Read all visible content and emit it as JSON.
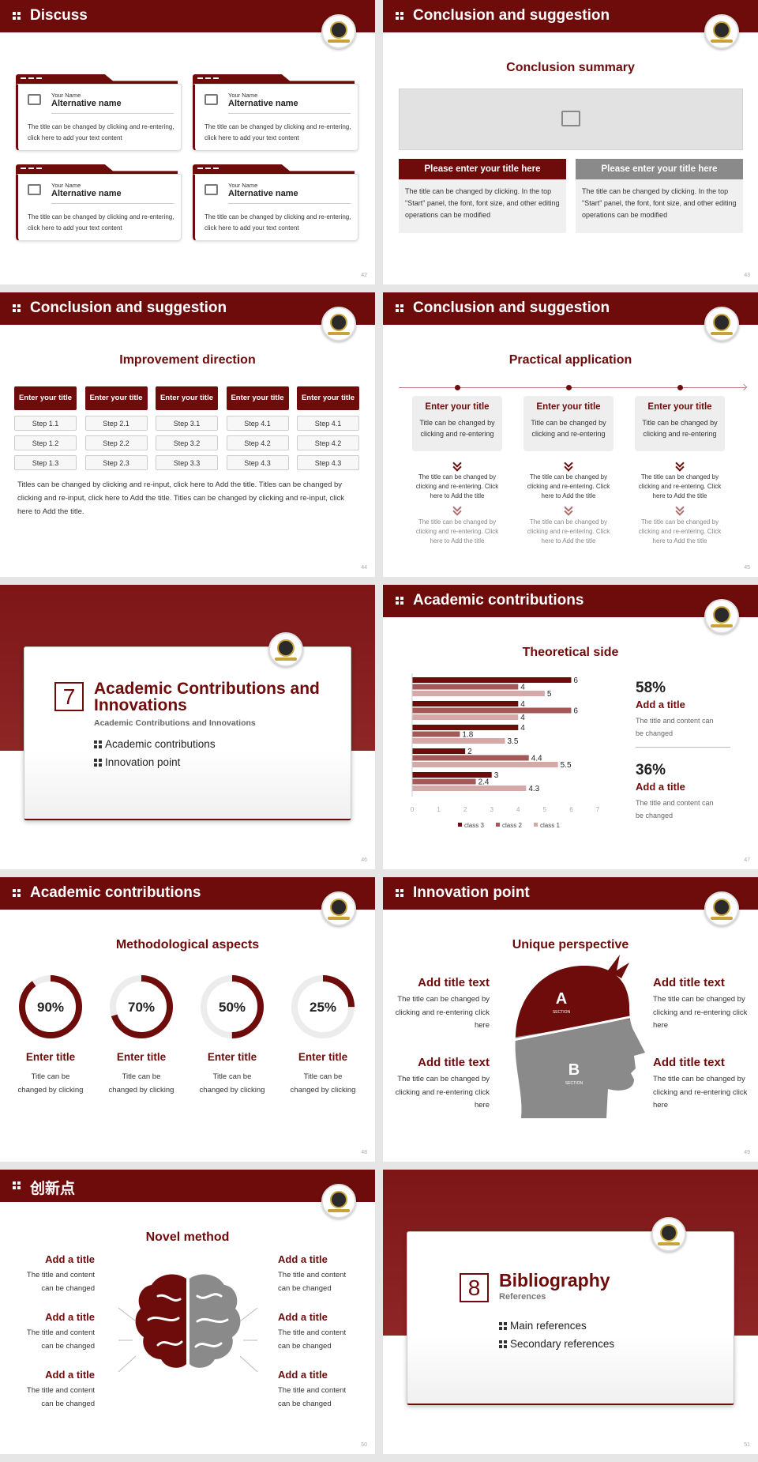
{
  "slides": [
    {
      "title": "Discuss",
      "page": "42",
      "cards": [
        {
          "label": "Your Name",
          "name": "Alternative name",
          "text": "The title can be changed by clicking and re-entering, click here to add your text content"
        },
        {
          "label": "Your Name",
          "name": "Alternative name",
          "text": "The title can be changed by clicking and re-entering, click here to add your text content"
        },
        {
          "label": "Your Name",
          "name": "Alternative name",
          "text": "The title can be changed by clicking and re-entering, click here to add your text content"
        },
        {
          "label": "Your Name",
          "name": "Alternative name",
          "text": "The title can be changed by clicking and re-entering, click here to add your text content"
        }
      ]
    },
    {
      "title": "Conclusion and suggestion",
      "page": "43",
      "heading": "Conclusion summary",
      "boxes": [
        {
          "title": "Please enter your title here",
          "text": "The title can be changed by clicking. In the top \"Start\" panel, the font, font size, and other editing operations can be modified"
        },
        {
          "title": "Please enter your title here",
          "text": "The title can be changed by clicking. In the top \"Start\" panel, the font, font size, and other editing operations can be modified"
        }
      ]
    },
    {
      "title": "Conclusion and suggestion",
      "page": "44",
      "heading": "Improvement direction",
      "columns": [
        {
          "title": "Enter your title",
          "steps": [
            "Step 1.1",
            "Step 1.2",
            "Step 1.3"
          ]
        },
        {
          "title": "Enter your title",
          "steps": [
            "Step 2.1",
            "Step 2.2",
            "Step 2.3"
          ]
        },
        {
          "title": "Enter your title",
          "steps": [
            "Step 3.1",
            "Step 3.2",
            "Step 3.3"
          ]
        },
        {
          "title": "Enter your title",
          "steps": [
            "Step 4.1",
            "Step 4.2",
            "Step 4.3"
          ]
        },
        {
          "title": "Enter your title",
          "steps": [
            "Step 4.1",
            "Step 4.2",
            "Step 4.3"
          ]
        }
      ],
      "text": "Titles can be changed by clicking and re-input, click here to Add the title. Titles can be changed by clicking and re-input, click here to Add the title. Titles can be changed by clicking and re-input, click here to Add the title."
    },
    {
      "title": "Conclusion and suggestion",
      "page": "45",
      "heading": "Practical application",
      "columns": [
        {
          "title": "Enter your title",
          "subtitle": "Title can be changed by clicking and re-entering",
          "text1": "The title can be changed by clicking and re-entering. Click here to Add the title",
          "text2": "The title can be changed by clicking and re-entering. Click here to Add the title"
        },
        {
          "title": "Enter your title",
          "subtitle": "Title can be changed by clicking and re-entering",
          "text1": "The title can be changed by clicking and re-entering. Click here to Add the title",
          "text2": "The title can be changed by clicking and re-entering. Click here to Add the title"
        },
        {
          "title": "Enter your title",
          "subtitle": "Title can be changed by clicking and re-entering",
          "text1": "The title can be changed by clicking and re-entering. Click here to Add the title",
          "text2": "The title can be changed by clicking and re-entering. Click here to Add the title"
        }
      ]
    },
    {
      "page": "46",
      "number": "7",
      "title": "Academic Contributions and Innovations",
      "subtitle": "Academic Contributions and Innovations",
      "items": [
        "Academic contributions",
        "Innovation point"
      ]
    },
    {
      "title": "Academic contributions",
      "page": "47",
      "heading": "Theoretical side",
      "chart": {
        "type": "bar",
        "categories": [
          null,
          null,
          null,
          null,
          null
        ],
        "series": [
          {
            "name": "class 3",
            "color": "#6e0b0b",
            "values": [
              6,
              4,
              4,
              2,
              3
            ]
          },
          {
            "name": "class 2",
            "color": "#a65757",
            "values": [
              4,
              6,
              1.8,
              4.4,
              2.4
            ]
          },
          {
            "name": "class 1",
            "color": "#d6a9a9",
            "values": [
              5,
              4,
              3.5,
              5.5,
              4.3
            ]
          }
        ],
        "xlim": [
          0,
          7
        ],
        "xticks": [
          0,
          1,
          2,
          3,
          4,
          5,
          6,
          7
        ],
        "legend": "bottom"
      },
      "stats": [
        {
          "value": "58%",
          "title": "Add a title",
          "text": "The title and content can be changed"
        },
        {
          "value": "36%",
          "title": "Add a title",
          "text": "The title and content can be changed"
        }
      ]
    },
    {
      "title": "Academic contributions",
      "page": "48",
      "heading": "Methodological aspects",
      "rings": [
        {
          "value": 90,
          "label": "90%",
          "title": "Enter title",
          "text": "Title can be changed by clicking"
        },
        {
          "value": 70,
          "label": "70%",
          "title": "Enter title",
          "text": "Title can be changed by clicking"
        },
        {
          "value": 50,
          "label": "50%",
          "title": "Enter title",
          "text": "Title can be changed by clicking"
        },
        {
          "value": 25,
          "label": "25%",
          "title": "Enter title",
          "text": "Title can be changed by clicking"
        }
      ]
    },
    {
      "title": "Innovation point",
      "page": "49",
      "heading": "Unique perspective",
      "head_labels": [
        "A",
        "SECTION",
        "B",
        "SECTION"
      ],
      "items": [
        {
          "title": "Add title text",
          "text": "The title can be changed by clicking and re-entering click here"
        },
        {
          "title": "Add title text",
          "text": "The title can be changed by clicking and re-entering click here"
        },
        {
          "title": "Add title text",
          "text": "The title can be changed by clicking and re-entering click here"
        },
        {
          "title": "Add title text",
          "text": "The title can be changed by clicking and re-entering click here"
        }
      ]
    },
    {
      "title": "创新点",
      "page": "50",
      "heading": "Novel method",
      "items": [
        {
          "title": "Add a title",
          "text": "The title and content can be changed"
        },
        {
          "title": "Add a title",
          "text": "The title and content can be changed"
        },
        {
          "title": "Add a title",
          "text": "The title and content can be changed"
        },
        {
          "title": "Add a title",
          "text": "The title and content can be changed"
        },
        {
          "title": "Add a title",
          "text": "The title and content can be changed"
        },
        {
          "title": "Add a title",
          "text": "The title and content can be changed"
        }
      ]
    },
    {
      "page": "51",
      "number": "8",
      "title": "Bibliography",
      "subtitle": "References",
      "items": [
        "Main references",
        "Secondary references"
      ]
    }
  ]
}
